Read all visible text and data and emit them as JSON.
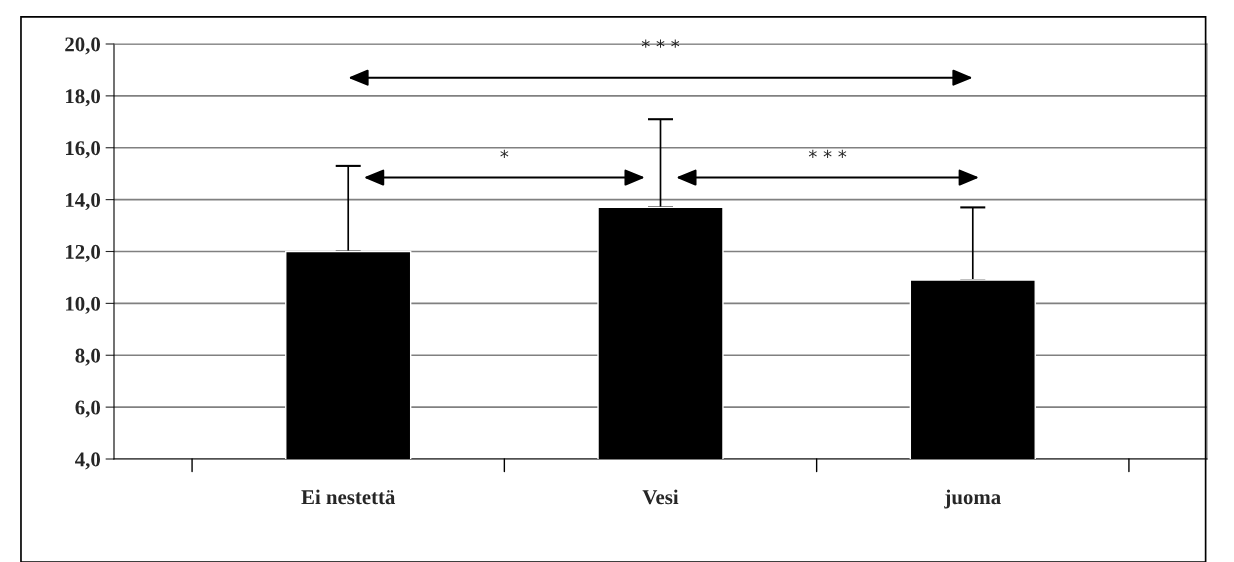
{
  "chart_data": {
    "type": "bar",
    "categories": [
      "Ei nestettä",
      "Vesi",
      "juoma"
    ],
    "values": [
      12.0,
      13.7,
      10.9
    ],
    "errors": [
      [
        12.0,
        15.3
      ],
      [
        13.7,
        17.1
      ],
      [
        10.9,
        13.7
      ]
    ],
    "color": "#000000",
    "ylim": [
      4,
      20
    ],
    "yticks": [
      {
        "value": 4,
        "label": "4,0"
      },
      {
        "value": 6,
        "label": "6,0"
      },
      {
        "value": 8,
        "label": "8,0"
      },
      {
        "value": 10,
        "label": "10,0"
      },
      {
        "value": 12,
        "label": "12,0"
      },
      {
        "value": 14,
        "label": "14,0"
      },
      {
        "value": 16,
        "label": "16,0"
      },
      {
        "value": 18,
        "label": "18,0"
      },
      {
        "value": 20,
        "label": "20,0"
      }
    ],
    "grid": "y",
    "annotations": [
      "* * *",
      "*",
      "* * *"
    ]
  }
}
